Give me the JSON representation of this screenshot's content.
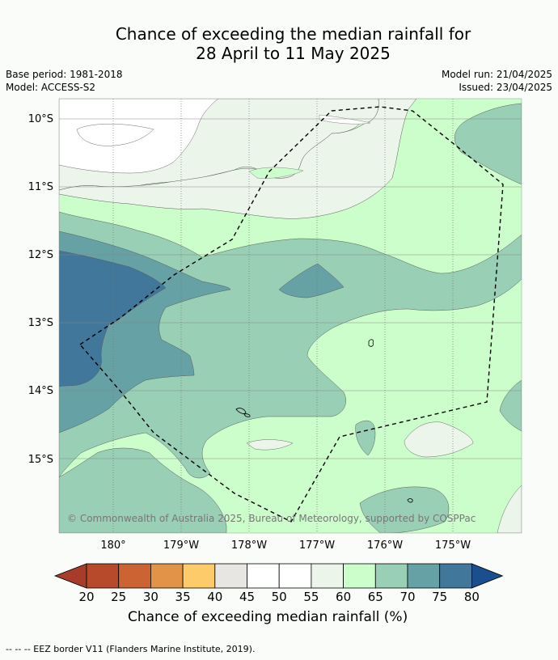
{
  "title_line1": "Chance of exceeding the median rainfall for",
  "title_line2": "28 April to 11 May 2025",
  "base_period": "Base period: 1981-2018",
  "model": "Model: ACCESS-S2",
  "model_run": "Model run: 21/04/2025",
  "issued": "Issued: 23/04/2025",
  "copyright": "© Commonwealth of Australia 2025, Bureau of Meteorology, supported by COSPPac",
  "lat_labels": [
    "10°S",
    "11°S",
    "12°S",
    "13°S",
    "14°S",
    "15°S"
  ],
  "lon_labels": [
    "180°",
    "179°W",
    "178°W",
    "177°W",
    "176°W",
    "175°W"
  ],
  "legend": {
    "ticks": [
      "20",
      "25",
      "30",
      "35",
      "40",
      "45",
      "50",
      "55",
      "60",
      "65",
      "70",
      "75",
      "80"
    ],
    "colors": [
      "#a73c2a",
      "#b84a2c",
      "#cc6333",
      "#e19447",
      "#fecb6a",
      "#e8e6e2",
      "#ffffff",
      "#ffffff",
      "#ecf5ea",
      "#ccfecb",
      "#99cfb5",
      "#66a1a5",
      "#40779a",
      "#1a4f8d"
    ],
    "title": "Chance of exceeding median rainfall (%)"
  },
  "footnote": "-- -- -- EEZ border V11 (Flanders Marine Institute, 2019)."
}
